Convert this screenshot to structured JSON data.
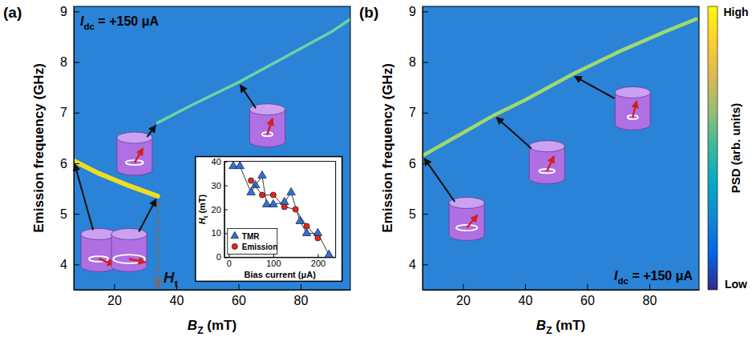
{
  "chart_data": [
    {
      "type": "line",
      "panel_label": "(a)",
      "xlabel": {
        "main": "B",
        "sub": "Z",
        "rest": " (mT)"
      },
      "ylabel": "Emission frequency (GHz)",
      "xlim": [
        7,
        96
      ],
      "xticks": [
        20,
        40,
        60,
        80
      ],
      "ylim": [
        3.5,
        9.1
      ],
      "yticks": [
        4,
        5,
        6,
        7,
        8,
        9
      ],
      "annotation": {
        "main": "I",
        "sub": "dc",
        "rest": " = +150 μA"
      },
      "threshold": {
        "value": 34,
        "label": {
          "main": "H",
          "sub": "t"
        }
      },
      "series": [
        {
          "color": "#f9e21a",
          "x": [
            7,
            15,
            25,
            34
          ],
          "values": [
            6.05,
            5.8,
            5.55,
            5.35
          ]
        },
        {
          "color": "#6ed9a0",
          "x": [
            34,
            45,
            60,
            75,
            90,
            96
          ],
          "values": [
            6.8,
            7.15,
            7.6,
            8.1,
            8.6,
            8.85
          ]
        }
      ]
    },
    {
      "type": "line",
      "panel_label": "(b)",
      "xlabel": {
        "main": "B",
        "sub": "Z",
        "rest": " (mT)"
      },
      "ylabel": "Emission frequency (GHz)",
      "xlim": [
        7,
        96
      ],
      "xticks": [
        20,
        40,
        60,
        80
      ],
      "ylim": [
        3.5,
        9.1
      ],
      "yticks": [
        4,
        5,
        6,
        7,
        8,
        9
      ],
      "annotation": {
        "main": "I",
        "sub": "dc",
        "rest": " = +150 μA"
      },
      "series": [
        {
          "color": "#a5dc6a",
          "x": [
            7,
            20,
            30,
            40,
            55,
            70,
            85,
            95
          ],
          "values": [
            6.15,
            6.6,
            6.95,
            7.25,
            7.75,
            8.2,
            8.6,
            8.85
          ]
        }
      ],
      "colorbar": {
        "title": "PSD (arb. units)",
        "high": "High",
        "low": "Low"
      }
    },
    {
      "type": "scatter",
      "xlabel": "Bias current (μA)",
      "ylabel": {
        "main": "H",
        "sub": "t",
        "rest": " (mT)"
      },
      "xlim": [
        -10,
        240
      ],
      "xticks": [
        0,
        100,
        200
      ],
      "ylim": [
        0,
        40
      ],
      "yticks": [
        0,
        10,
        20,
        30,
        40
      ],
      "legend": "lower left",
      "series": [
        {
          "name": "TMR",
          "color": "#2f6fe0",
          "marker": "triangle",
          "line_style": "solid",
          "x": [
            10,
            25,
            50,
            60,
            75,
            85,
            100,
            125,
            140,
            160,
            175,
            200,
            225
          ],
          "values": [
            38,
            38,
            27,
            30,
            34,
            22,
            22,
            23,
            27,
            15,
            10,
            10,
            1
          ]
        },
        {
          "name": "Emission",
          "color": "#e8231c",
          "marker": "circle",
          "line_style": "solid",
          "x": [
            50,
            75,
            100,
            125,
            150,
            175,
            200
          ],
          "values": [
            32,
            26,
            26,
            21,
            20,
            13,
            8
          ]
        }
      ]
    }
  ]
}
